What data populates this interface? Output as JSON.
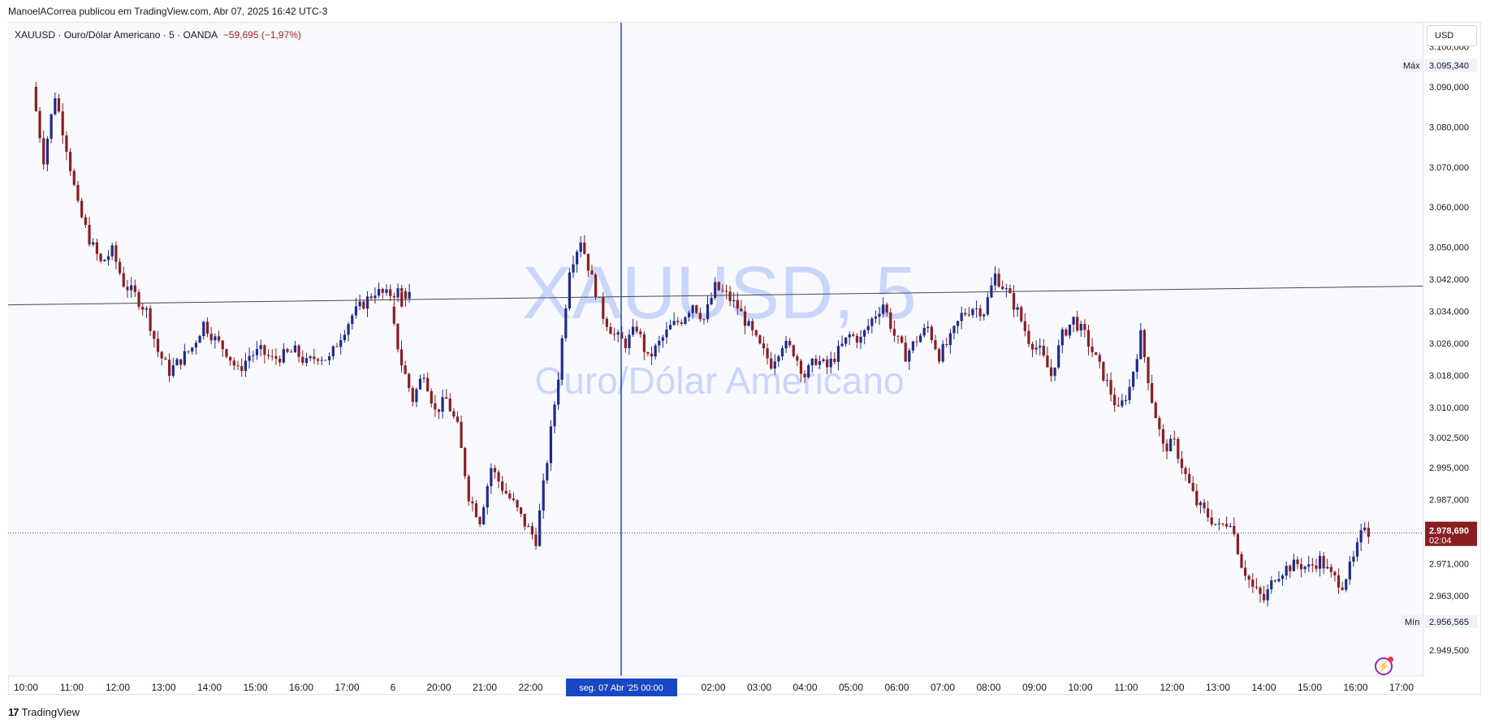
{
  "header": {
    "text": "ManoelACorrea publicou em TradingView.com, Abr 07, 2025 16:42 UTC-3"
  },
  "symbol": {
    "ticker": "XAUUSD",
    "sep1": " · ",
    "name": "Ouro/Dólar Americano",
    "sep2": " · ",
    "interval": "5",
    "sep3": " · ",
    "broker": "OANDA",
    "change": "−59,695 (−1,97%)"
  },
  "watermark": {
    "line1": "XAUUSD, 5",
    "line2": "Ouro/Dólar Americano"
  },
  "currency_button": "USD",
  "footer": {
    "brand": "TradingView",
    "logo_glyph": "17"
  },
  "colors": {
    "up": "#1e2a8f",
    "down": "#8a1e22",
    "crosshair": "#1848c4",
    "last_price": "#8a1e22",
    "watermark": "#c9d6fb",
    "background": "#f8f9fd"
  },
  "chart_data": {
    "type": "candlestick",
    "symbol": "XAUUSD",
    "interval": "5",
    "ylim": [
      2943.0,
      3106.0
    ],
    "y_ticks": [
      "3.100,000",
      "3.090,000",
      "3.080,000",
      "3.070,000",
      "3.060,000",
      "3.050,000",
      "3.042,000",
      "3.034,000",
      "3.026,000",
      "3.018,000",
      "3.010,000",
      "3.002,500",
      "2.995,000",
      "2.987,000",
      "2.971,000",
      "2.963,000",
      "2.949,500"
    ],
    "x_ticks": [
      "10:00",
      "11:00",
      "12:00",
      "13:00",
      "14:00",
      "15:00",
      "16:00",
      "17:00",
      "6",
      "20:00",
      "21:00",
      "22:00",
      "02:00",
      "03:00",
      "04:00",
      "05:00",
      "06:00",
      "07:00",
      "08:00",
      "09:00",
      "10:00",
      "11:00",
      "12:00",
      "13:00",
      "14:00",
      "15:00",
      "16:00",
      "17:00"
    ],
    "max_label": {
      "label": "Máx",
      "value": "3.095,340"
    },
    "min_label": {
      "label": "Mín",
      "value": "2.956,565"
    },
    "last_price": {
      "value": "2.978,690",
      "countdown": "02:04",
      "level": 2978.69
    },
    "crosshair_label": "seg. 07 Abr '25   00:00",
    "trendline": {
      "start": [
        "09:45",
        3035.6
      ],
      "end": [
        "17:10",
        3040.3
      ]
    },
    "price_path": [
      [
        "09:45",
        3090
      ],
      [
        "10:00",
        3072
      ],
      [
        "10:15",
        3088
      ],
      [
        "10:30",
        3075
      ],
      [
        "10:45",
        3060
      ],
      [
        "11:00",
        3052
      ],
      [
        "11:15",
        3046
      ],
      [
        "11:30",
        3049
      ],
      [
        "11:45",
        3041
      ],
      [
        "12:00",
        3038
      ],
      [
        "12:15",
        3034
      ],
      [
        "12:30",
        3024
      ],
      [
        "12:45",
        3019
      ],
      [
        "13:00",
        3022
      ],
      [
        "13:15",
        3025
      ],
      [
        "13:30",
        3031
      ],
      [
        "13:45",
        3027
      ],
      [
        "14:00",
        3024
      ],
      [
        "14:15",
        3019
      ],
      [
        "14:30",
        3023
      ],
      [
        "14:45",
        3024
      ],
      [
        "15:00",
        3022
      ],
      [
        "15:15",
        3023
      ],
      [
        "15:30",
        3024
      ],
      [
        "15:45",
        3021
      ],
      [
        "16:00",
        3023
      ],
      [
        "16:15",
        3022
      ],
      [
        "16:30",
        3028
      ],
      [
        "16:45",
        3033
      ],
      [
        "17:00",
        3036
      ],
      [
        "17:15",
        3039
      ],
      [
        "17:30",
        3038
      ],
      [
        "17:45",
        3039
      ],
      [
        "18:00",
        3038
      ],
      [
        "19:00",
        3034
      ],
      [
        "19:15",
        3021
      ],
      [
        "19:30",
        3012
      ],
      [
        "19:45",
        3019
      ],
      [
        "20:00",
        3009
      ],
      [
        "20:15",
        3012
      ],
      [
        "20:30",
        3005
      ],
      [
        "20:45",
        2988
      ],
      [
        "21:00",
        2982
      ],
      [
        "21:15",
        2995
      ],
      [
        "21:30",
        2990
      ],
      [
        "21:45",
        2986
      ],
      [
        "22:00",
        2981
      ],
      [
        "22:15",
        2977
      ],
      [
        "22:30",
        2997
      ],
      [
        "22:45",
        3018
      ],
      [
        "23:00",
        3045
      ],
      [
        "23:15",
        3052
      ],
      [
        "23:30",
        3042
      ],
      [
        "23:45",
        3033
      ],
      [
        "00:00",
        3028
      ],
      [
        "00:15",
        3026
      ],
      [
        "00:30",
        3030
      ],
      [
        "00:45",
        3022
      ],
      [
        "01:00",
        3026
      ],
      [
        "01:15",
        3030
      ],
      [
        "01:30",
        3032
      ],
      [
        "01:45",
        3036
      ],
      [
        "02:00",
        3032
      ],
      [
        "02:15",
        3040
      ],
      [
        "02:30",
        3038
      ],
      [
        "02:45",
        3035
      ],
      [
        "03:00",
        3030
      ],
      [
        "03:15",
        3025
      ],
      [
        "03:30",
        3021
      ],
      [
        "03:45",
        3026
      ],
      [
        "04:00",
        3024
      ],
      [
        "04:15",
        3018
      ],
      [
        "04:30",
        3022
      ],
      [
        "04:45",
        3020
      ],
      [
        "05:00",
        3024
      ],
      [
        "05:15",
        3028
      ],
      [
        "05:30",
        3027
      ],
      [
        "05:45",
        3032
      ],
      [
        "06:00",
        3036
      ],
      [
        "06:15",
        3028
      ],
      [
        "06:30",
        3023
      ],
      [
        "06:45",
        3027
      ],
      [
        "07:00",
        3030
      ],
      [
        "07:15",
        3023
      ],
      [
        "07:30",
        3027
      ],
      [
        "07:45",
        3033
      ],
      [
        "08:00",
        3035
      ],
      [
        "08:15",
        3034
      ],
      [
        "08:30",
        3043
      ],
      [
        "08:45",
        3039
      ],
      [
        "09:00",
        3034
      ],
      [
        "09:15",
        3027
      ],
      [
        "09:30",
        3024
      ],
      [
        "09:45",
        3018
      ],
      [
        "10:00",
        3028
      ],
      [
        "10:15",
        3032
      ],
      [
        "10:30",
        3028
      ],
      [
        "10:45",
        3022
      ],
      [
        "11:00",
        3016
      ],
      [
        "11:15",
        3009
      ],
      [
        "11:30",
        3015
      ],
      [
        "11:45",
        3028
      ],
      [
        "12:00",
        3012
      ],
      [
        "12:15",
        3000
      ],
      [
        "12:30",
        3001
      ],
      [
        "12:45",
        2993
      ],
      [
        "13:00",
        2986
      ],
      [
        "13:15",
        2983
      ],
      [
        "13:30",
        2980
      ],
      [
        "13:45",
        2982
      ],
      [
        "14:00",
        2971
      ],
      [
        "14:15",
        2965
      ],
      [
        "14:30",
        2962
      ],
      [
        "14:45",
        2968
      ],
      [
        "15:00",
        2970
      ],
      [
        "15:15",
        2971
      ],
      [
        "15:30",
        2970
      ],
      [
        "15:45",
        2972
      ],
      [
        "16:00",
        2968
      ],
      [
        "16:15",
        2966
      ],
      [
        "16:30",
        2972
      ],
      [
        "16:45",
        2981
      ],
      [
        "16:50",
        2979
      ]
    ]
  }
}
